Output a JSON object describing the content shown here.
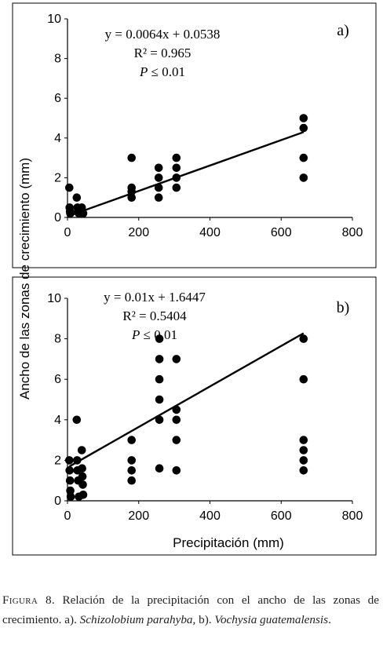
{
  "shared_ylabel": "Ancho de las zonas de crecimiento (mm)",
  "caption": {
    "label": "Figura 8.",
    "text1": " Relación de la precipitación con el ancho de las zonas de crecimiento. a). ",
    "species_a": "Schizolobium parahyba",
    "text2": ", b). ",
    "species_b": "Vochysia guatemalensis",
    "text3": "."
  },
  "chart_data": [
    {
      "type": "scatter",
      "panel_label": "a)",
      "xlabel": "",
      "xlim": [
        0,
        800
      ],
      "ylim": [
        0,
        10
      ],
      "xticks": [
        0,
        200,
        400,
        600,
        800
      ],
      "yticks": [
        0,
        2,
        4,
        6,
        8,
        10
      ],
      "x_tick_labels": [
        "0",
        "200",
        "400",
        "600",
        "800"
      ],
      "y_tick_labels": [
        "0",
        "2",
        "4",
        "6",
        "8",
        "10"
      ],
      "equation": "y = 0.0064x + 0.0538",
      "r2": "R² = 0.965",
      "p_var": "P",
      "p_rest": " ≤ 0.01",
      "trendline": {
        "slope": 0.0064,
        "intercept": 0.0538,
        "x_range": [
          5,
          663
        ]
      },
      "points": [
        {
          "x": 5,
          "y": 1.5
        },
        {
          "x": 6,
          "y": 0.5
        },
        {
          "x": 7,
          "y": 0.3
        },
        {
          "x": 8,
          "y": 0.2
        },
        {
          "x": 26,
          "y": 1.0
        },
        {
          "x": 28,
          "y": 0.5
        },
        {
          "x": 30,
          "y": 0.3
        },
        {
          "x": 32,
          "y": 0.2
        },
        {
          "x": 40,
          "y": 0.5
        },
        {
          "x": 42,
          "y": 0.3
        },
        {
          "x": 44,
          "y": 0.2
        },
        {
          "x": 180,
          "y": 3.0
        },
        {
          "x": 180,
          "y": 1.5
        },
        {
          "x": 180,
          "y": 1.3
        },
        {
          "x": 180,
          "y": 1.0
        },
        {
          "x": 256,
          "y": 2.5
        },
        {
          "x": 256,
          "y": 2.0
        },
        {
          "x": 256,
          "y": 1.5
        },
        {
          "x": 256,
          "y": 1.0
        },
        {
          "x": 306,
          "y": 3.0
        },
        {
          "x": 306,
          "y": 2.5
        },
        {
          "x": 306,
          "y": 2.0
        },
        {
          "x": 306,
          "y": 1.5
        },
        {
          "x": 663,
          "y": 5.0
        },
        {
          "x": 663,
          "y": 4.5
        },
        {
          "x": 663,
          "y": 3.0
        },
        {
          "x": 663,
          "y": 2.0
        }
      ]
    },
    {
      "type": "scatter",
      "panel_label": "b)",
      "xlabel": "Precipitación (mm)",
      "xlim": [
        0,
        800
      ],
      "ylim": [
        0,
        10
      ],
      "xticks": [
        0,
        200,
        400,
        600,
        800
      ],
      "yticks": [
        0,
        2,
        4,
        6,
        8,
        10
      ],
      "x_tick_labels": [
        "0",
        "200",
        "400",
        "600",
        "800"
      ],
      "y_tick_labels": [
        "0",
        "2",
        "4",
        "6",
        "8",
        "10"
      ],
      "equation": "y = 0.01x + 1.6447",
      "r2": "R² = 0.5404",
      "p_var": "P",
      "p_rest": " ≤ 0.01",
      "trendline": {
        "slope": 0.01,
        "intercept": 1.6447,
        "x_range": [
          5,
          663
        ]
      },
      "points": [
        {
          "x": 5,
          "y": 2.0
        },
        {
          "x": 6,
          "y": 1.5
        },
        {
          "x": 7,
          "y": 1.0
        },
        {
          "x": 8,
          "y": 0.5
        },
        {
          "x": 9,
          "y": 0.2
        },
        {
          "x": 26,
          "y": 4.0
        },
        {
          "x": 27,
          "y": 2.0
        },
        {
          "x": 28,
          "y": 1.5
        },
        {
          "x": 30,
          "y": 1.0
        },
        {
          "x": 32,
          "y": 0.2
        },
        {
          "x": 40,
          "y": 2.5
        },
        {
          "x": 41,
          "y": 1.6
        },
        {
          "x": 42,
          "y": 1.2
        },
        {
          "x": 43,
          "y": 0.8
        },
        {
          "x": 44,
          "y": 0.3
        },
        {
          "x": 180,
          "y": 3.0
        },
        {
          "x": 180,
          "y": 2.0
        },
        {
          "x": 180,
          "y": 1.5
        },
        {
          "x": 180,
          "y": 1.0
        },
        {
          "x": 258,
          "y": 8.0
        },
        {
          "x": 258,
          "y": 7.0
        },
        {
          "x": 258,
          "y": 6.0
        },
        {
          "x": 258,
          "y": 5.0
        },
        {
          "x": 258,
          "y": 4.0
        },
        {
          "x": 258,
          "y": 1.6
        },
        {
          "x": 306,
          "y": 7.0
        },
        {
          "x": 306,
          "y": 4.5
        },
        {
          "x": 306,
          "y": 4.0
        },
        {
          "x": 306,
          "y": 3.0
        },
        {
          "x": 306,
          "y": 1.5
        },
        {
          "x": 663,
          "y": 8.0
        },
        {
          "x": 663,
          "y": 6.0
        },
        {
          "x": 663,
          "y": 3.0
        },
        {
          "x": 663,
          "y": 2.5
        },
        {
          "x": 663,
          "y": 2.0
        },
        {
          "x": 663,
          "y": 1.5
        }
      ]
    }
  ]
}
